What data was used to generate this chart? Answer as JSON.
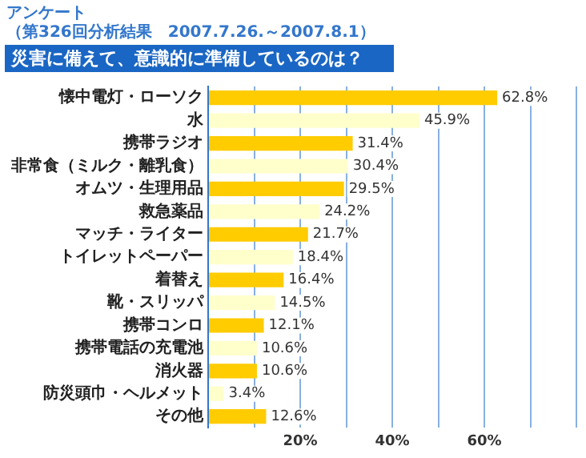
{
  "chart_data": {
    "type": "bar",
    "orientation": "horizontal",
    "title": "災害に備えて、意識的に準備しているのは？",
    "subtitle": "アンケート",
    "annotations": [
      "（第326回分析結果　2007.7.26.～2007.8.1）"
    ],
    "categories": [
      "懐中電灯・ローソク",
      "水",
      "携帯ラジオ",
      "非常食（ミルク・離乳食）",
      "オムツ・生理用品",
      "救急薬品",
      "マッチ・ライター",
      "トイレットペーパー",
      "着替え",
      "靴・スリッパ",
      "携帯コンロ",
      "携帯電話の充電池",
      "消火器",
      "防災頭巾・ヘルメット",
      "その他"
    ],
    "values": [
      62.8,
      45.9,
      31.4,
      30.4,
      29.5,
      24.2,
      21.7,
      18.4,
      16.4,
      14.5,
      12.1,
      10.6,
      10.6,
      3.4,
      12.6
    ],
    "colors": [
      "#ffcc00",
      "#ffffcc",
      "#ffcc00",
      "#ffffcc",
      "#ffcc00",
      "#ffffcc",
      "#ffcc00",
      "#ffffcc",
      "#ffcc00",
      "#ffffcc",
      "#ffcc00",
      "#ffffcc",
      "#ffcc00",
      "#ffffcc",
      "#ffcc00"
    ],
    "value_labels": [
      "62.8%",
      "45.9%",
      "31.4%",
      "30.4%",
      "29.5%",
      "24.2%",
      "21.7%",
      "18.4%",
      "16.4%",
      "14.5%",
      "12.1%",
      "10.6%",
      "10.6%",
      "3.4%",
      "12.6%"
    ],
    "xlim": [
      0,
      80
    ],
    "xticks": [
      {
        "value": 0,
        "label": null
      },
      {
        "value": 10,
        "label": null
      },
      {
        "value": 20,
        "label": "20%"
      },
      {
        "value": 30,
        "label": null
      },
      {
        "value": 40,
        "label": "40%"
      },
      {
        "value": 50,
        "label": null
      },
      {
        "value": 60,
        "label": "60%"
      },
      {
        "value": 70,
        "label": null
      },
      {
        "value": 80,
        "label": null
      }
    ],
    "grid": "x",
    "legend": false
  }
}
